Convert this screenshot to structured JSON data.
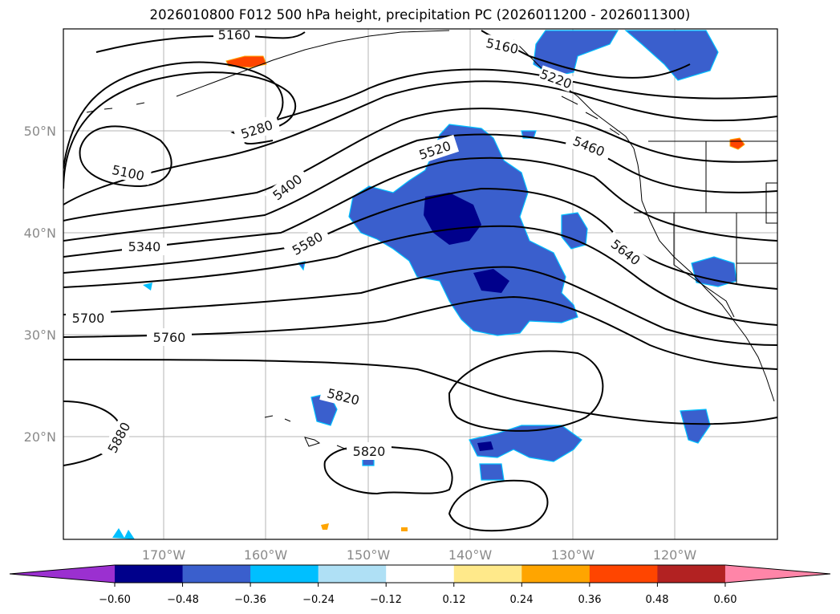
{
  "title": "2026010800 F012 500 hPa height, precipitation PC (2026011200 - 2026011300)",
  "map": {
    "longitude_ticks": [
      "170°W",
      "160°W",
      "150°W",
      "140°W",
      "130°W",
      "120°W"
    ],
    "latitude_ticks": [
      "50°N",
      "40°N",
      "30°N",
      "20°N"
    ],
    "contour_labels": [
      "5160",
      "5100",
      "5280",
      "5400",
      "5340",
      "5520",
      "5460",
      "5580",
      "5640",
      "5700",
      "5760",
      "5820",
      "5820",
      "5880",
      "5160",
      "5220"
    ],
    "gridlines": true
  },
  "colorbar": {
    "ticks": [
      "−0.60",
      "−0.48",
      "−0.36",
      "−0.24",
      "−0.12",
      "0.12",
      "0.24",
      "0.36",
      "0.48",
      "0.60"
    ],
    "colors": [
      "#9b30d0",
      "#00008b",
      "#3a5fcd",
      "#00bfff",
      "#afe0f5",
      "#ffffff",
      "#ffe98a",
      "#ffa500",
      "#ff4500",
      "#b22222",
      "#ff85a8"
    ]
  }
}
